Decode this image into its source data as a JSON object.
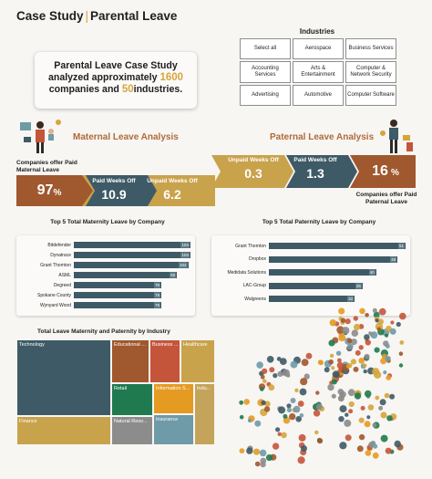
{
  "header": {
    "title_left": "Case Study",
    "separator": "|",
    "title_right": "Parental Leave"
  },
  "summary": {
    "line1": "Parental Leave Case Study",
    "line2_pre": "analyzed approximately ",
    "line2_num": "1600",
    "line3_pre": "companies and ",
    "line3_num": "50",
    "line3_post": "industries."
  },
  "industries": {
    "title": "Industries",
    "items": [
      "Select all",
      "Aerospace",
      "Business Services",
      "Accounting Services",
      "Arts & Entertainment",
      "Computer & Network Security",
      "Advertising",
      "Automotive",
      "Computer Software"
    ]
  },
  "maternal": {
    "heading": "Maternal Leave Analysis",
    "companies_label": "Companies offer Paid Maternal Leave",
    "pct": "97",
    "pct_sign": "%",
    "paid_label": "Paid Weeks Off",
    "paid_value": "10.9",
    "unpaid_label": "Unpaid Weeks Off",
    "unpaid_value": "6.2"
  },
  "paternal": {
    "heading": "Paternal Leave Analysis",
    "unpaid_label": "Unpaid Weeks Off",
    "unpaid_value": "0.3",
    "paid_label": "Paid Weeks Off",
    "paid_value": "1.3",
    "pct": "16",
    "pct_sign": "%",
    "companies_label": "Companies offer Paid Paternal Leave"
  },
  "colors": {
    "gold": "#c9a24c",
    "teal": "#3e5a66",
    "brown": "#a0582e",
    "accent": "#d6a53b"
  },
  "chart_data": [
    {
      "type": "bar",
      "orientation": "horizontal",
      "title": "Top 5 Total Maternity Leave by Company",
      "categories": [
        "Bitdefender",
        "Dynatrace",
        "Grant Thornton",
        "ASML",
        "Degreed",
        "Spokane County",
        "Wynyard Wood"
      ],
      "values": [
        104,
        104,
        102,
        92,
        78,
        78,
        78
      ],
      "xlim": [
        0,
        104
      ]
    },
    {
      "type": "bar",
      "orientation": "horizontal",
      "title": "Top 5 Total Paternity Leave by Company",
      "categories": [
        "Grant Thornton",
        "Dropbox",
        "Medidata Solutions",
        "LAC-Group",
        "Walgreens"
      ],
      "values": [
        51,
        48,
        40,
        35,
        32
      ],
      "xlim": [
        0,
        51
      ]
    },
    {
      "type": "heatmap",
      "subtype": "treemap",
      "title": "Total Leave Maternity and Paternity by Industry",
      "categories": [
        "Technology",
        "Educational ...",
        "Business ...",
        "Healthcare",
        "Retail",
        "Information S...",
        "Indu...",
        "Finance",
        "Natural Reso...",
        "Insurance"
      ],
      "colors": [
        "#3e5a66",
        "#a0582e",
        "#c4553a",
        "#c9a24c",
        "#1f7a4f",
        "#e59a22",
        "#c4a35a",
        "#c9a24c",
        "#8c8c8c",
        "#6f9aa8"
      ]
    }
  ]
}
